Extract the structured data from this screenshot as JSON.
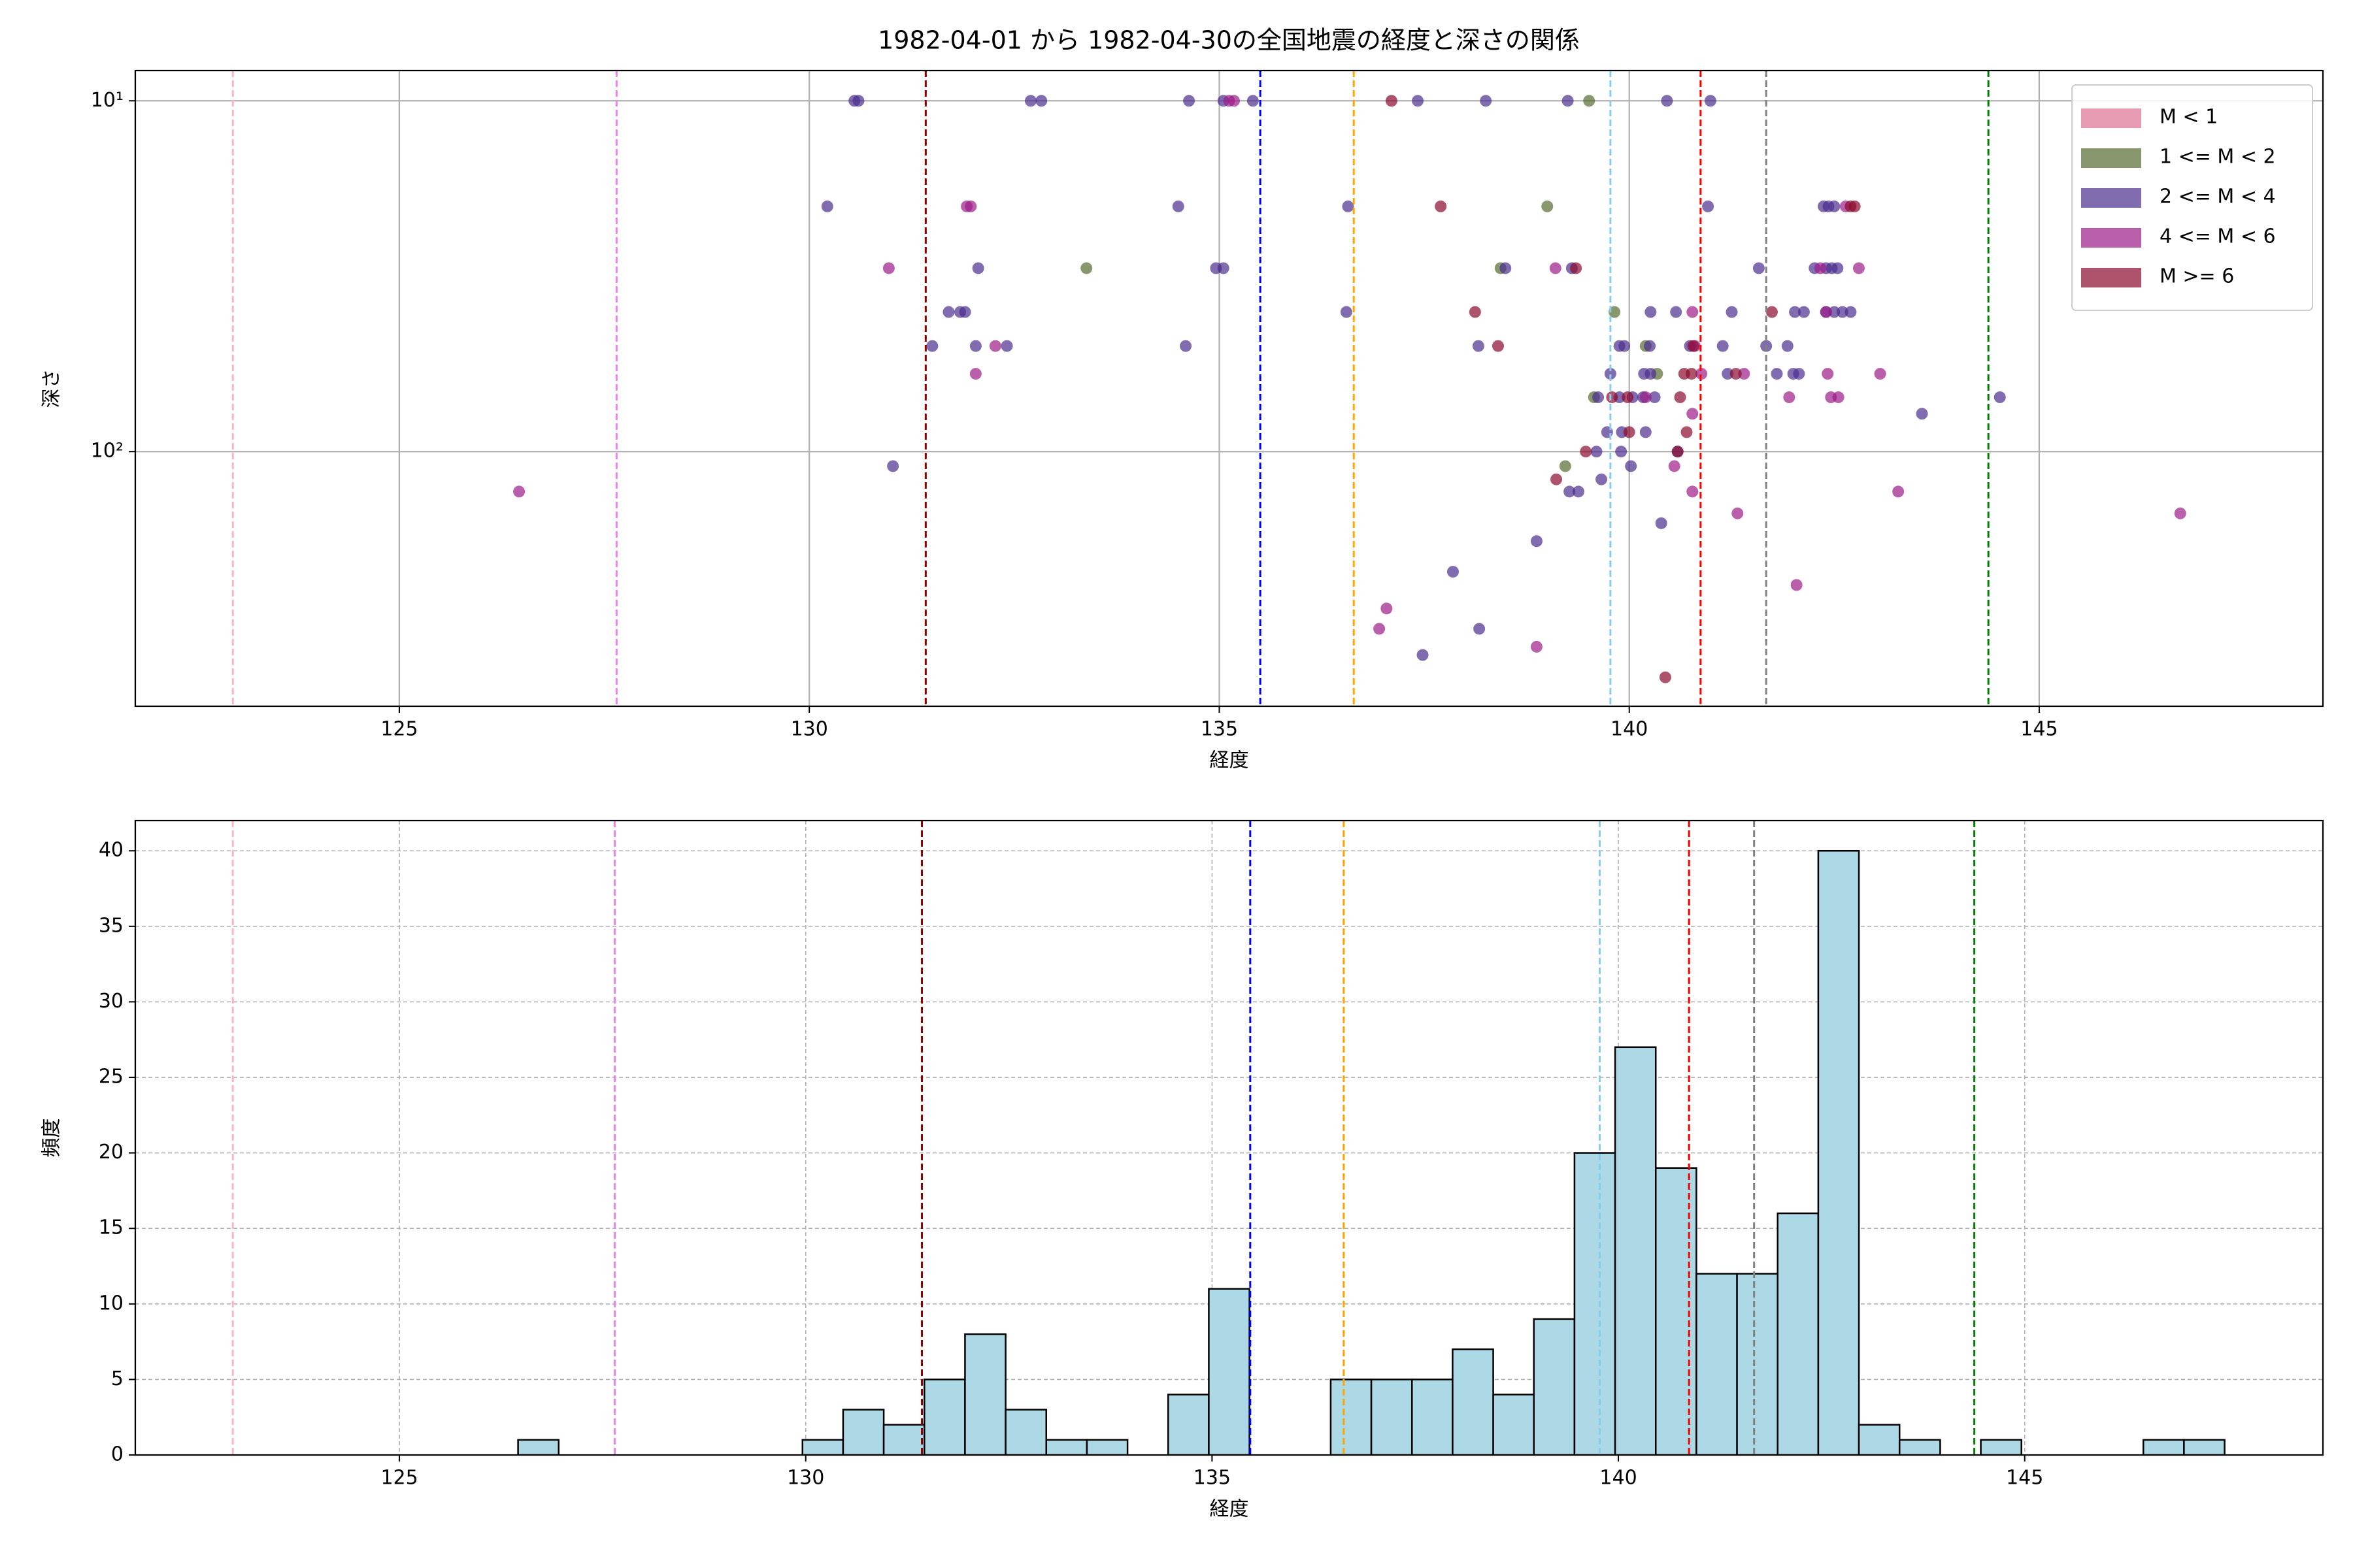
{
  "chart_data": [
    {
      "type": "scatter",
      "title": "1982-04-01 から 1982-04-30の全国地震の経度と深さの関係",
      "x_label": "経度",
      "y_label": "深さ",
      "xlim": [
        121.78,
        148.46
      ],
      "xticks": [
        125,
        130,
        135,
        140,
        145
      ],
      "ylim": [
        532,
        8.2
      ],
      "log_y": true,
      "yticks": [
        {
          "value": 10,
          "label": "10¹"
        },
        {
          "value": 100,
          "label": "10²"
        }
      ],
      "grid": "solid",
      "legend": "upper right",
      "alpha": 0.7,
      "vlines": [
        {
          "x": 122.97,
          "color": "#ffb6c1"
        },
        {
          "x": 127.65,
          "color": "#ee82ee"
        },
        {
          "x": 131.42,
          "color": "#8b0000"
        },
        {
          "x": 135.5,
          "color": "#0000ff"
        },
        {
          "x": 136.64,
          "color": "#ffa500"
        },
        {
          "x": 139.77,
          "color": "#87ceeb"
        },
        {
          "x": 140.87,
          "color": "#ff0000"
        },
        {
          "x": 141.67,
          "color": "#808080"
        },
        {
          "x": 144.38,
          "color": "#008000"
        }
      ],
      "series": [
        {
          "name": "M < 1",
          "color": "#db7093",
          "x": [],
          "values": []
        },
        {
          "name": "1 <= M < 2",
          "color": "#556b2f",
          "x": [
            139.51,
            139.0,
            133.38,
            138.43,
            139.82,
            140.2,
            140.34,
            139.57,
            139.22
          ],
          "values": [
            10,
            20,
            30,
            30,
            40,
            50,
            60,
            70,
            110
          ]
        },
        {
          "name": "2 <= M < 4",
          "color": "#4b2e8e",
          "x": [
            130.55,
            130.6,
            132.7,
            132.83,
            134.63,
            135.05,
            135.41,
            137.42,
            138.25,
            139.25,
            140.46,
            140.99,
            130.22,
            134.5,
            136.57,
            140.96,
            142.37,
            142.43,
            142.5,
            132.06,
            134.96,
            135.05,
            138.49,
            139.3,
            141.58,
            142.26,
            142.4,
            142.47,
            142.54,
            131.7,
            131.84,
            131.9,
            136.55,
            140.26,
            140.57,
            141.25,
            142.02,
            142.13,
            142.4,
            142.5,
            142.6,
            142.7,
            131.5,
            132.03,
            132.41,
            134.59,
            138.16,
            139.88,
            139.94,
            140.25,
            140.74,
            141.14,
            141.67,
            141.93,
            139.77,
            140.18,
            140.26,
            141.2,
            141.8,
            142.0,
            142.07,
            139.62,
            139.88,
            140.04,
            140.17,
            140.31,
            144.52,
            143.57,
            139.73,
            139.91,
            140.2,
            139.6,
            139.9,
            140.59,
            131.02,
            140.02,
            139.66,
            139.27,
            139.38,
            140.39,
            138.87,
            137.85,
            138.17,
            137.48
          ],
          "values": [
            10,
            10,
            10,
            10,
            10,
            10,
            10,
            10,
            10,
            10,
            10,
            10,
            20,
            20,
            20,
            20,
            20,
            20,
            20,
            30,
            30,
            30,
            30,
            30,
            30,
            30,
            30,
            30,
            30,
            40,
            40,
            40,
            40,
            40,
            40,
            40,
            40,
            40,
            40,
            40,
            40,
            40,
            50,
            50,
            50,
            50,
            50,
            50,
            50,
            50,
            50,
            50,
            50,
            50,
            60,
            60,
            60,
            60,
            60,
            60,
            60,
            70,
            70,
            70,
            70,
            70,
            70,
            78,
            88,
            88,
            88,
            100,
            100,
            100,
            110,
            110,
            120,
            130,
            130,
            160,
            180,
            220,
            320,
            380
          ]
        },
        {
          "name": "4 <= M < 6",
          "color": "#9b1b88",
          "x": [
            135.12,
            135.18,
            131.92,
            131.97,
            142.64,
            130.97,
            139.1,
            142.33,
            142.8,
            140.77,
            142.4,
            132.27,
            140.8,
            132.03,
            140.88,
            141.4,
            142.42,
            143.06,
            140.2,
            141.95,
            142.46,
            142.55,
            140.77,
            140.55,
            126.46,
            140.77,
            143.28,
            141.32,
            146.72,
            142.04,
            137.04,
            136.95,
            138.87
          ],
          "values": [
            10,
            10,
            20,
            20,
            20,
            30,
            30,
            30,
            30,
            40,
            40,
            50,
            50,
            60,
            60,
            60,
            60,
            60,
            70,
            70,
            70,
            70,
            78,
            110,
            130,
            130,
            130,
            150,
            150,
            240,
            280,
            320,
            360
          ]
        },
        {
          "name": "M >= 6",
          "color": "#8b0a2e",
          "x": [
            137.1,
            137.7,
            142.7,
            142.75,
            139.35,
            138.12,
            141.74,
            138.4,
            140.78,
            140.67,
            140.76,
            141.3,
            139.79,
            139.98,
            140.62,
            140.0,
            140.7,
            139.47,
            140.59,
            139.11,
            140.44
          ],
          "values": [
            10,
            20,
            20,
            20,
            30,
            40,
            40,
            50,
            50,
            60,
            60,
            60,
            70,
            70,
            70,
            88,
            88,
            100,
            100,
            120,
            440
          ]
        }
      ]
    },
    {
      "type": "histogram",
      "x_label": "経度",
      "y_label": "頻度",
      "xlim": [
        121.75,
        148.67
      ],
      "xticks": [
        125,
        130,
        135,
        140,
        145
      ],
      "ylim": [
        0,
        42
      ],
      "yticks": [
        0,
        5,
        10,
        15,
        20,
        25,
        30,
        35,
        40
      ],
      "grid": "dashed",
      "color": "#add8e6",
      "edgecolor": "#000000",
      "vlines": [
        {
          "x": 122.95,
          "color": "#ffb6c1"
        },
        {
          "x": 127.65,
          "color": "#ee82ee"
        },
        {
          "x": 131.43,
          "color": "#8b0000"
        },
        {
          "x": 135.47,
          "color": "#0000ff"
        },
        {
          "x": 136.62,
          "color": "#ffa500"
        },
        {
          "x": 139.77,
          "color": "#87ceeb"
        },
        {
          "x": 140.87,
          "color": "#ff0000"
        },
        {
          "x": 141.67,
          "color": "#808080"
        },
        {
          "x": 144.38,
          "color": "#008000"
        }
      ],
      "bins": [
        126.46,
        126.96,
        127.46,
        127.96,
        128.46,
        128.96,
        129.46,
        129.96,
        130.46,
        130.96,
        131.46,
        131.96,
        132.46,
        132.96,
        133.46,
        133.96,
        134.46,
        134.96,
        135.46,
        135.96,
        136.46,
        136.96,
        137.46,
        137.96,
        138.46,
        138.96,
        139.46,
        139.96,
        140.46,
        140.96,
        141.46,
        141.96,
        142.46,
        142.96,
        143.46,
        143.96,
        144.46,
        144.96,
        145.46,
        145.96,
        146.46,
        146.96,
        147.46
      ],
      "values": [
        1,
        0,
        0,
        0,
        0,
        0,
        0,
        1,
        3,
        2,
        5,
        8,
        3,
        1,
        1,
        0,
        4,
        11,
        0,
        0,
        5,
        5,
        5,
        7,
        4,
        9,
        20,
        27,
        19,
        12,
        12,
        16,
        40,
        2,
        1,
        0,
        1,
        0,
        0,
        0,
        1,
        1
      ]
    }
  ]
}
